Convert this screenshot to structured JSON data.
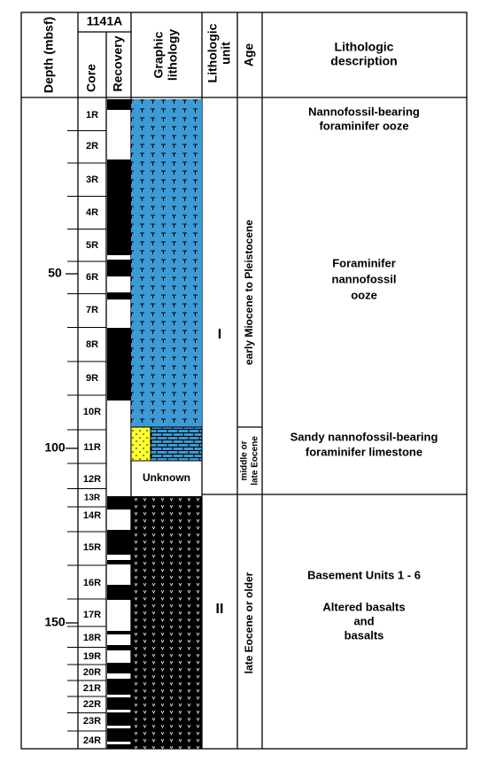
{
  "header": {
    "hole": "1141A",
    "depth": "Depth (mbsf)",
    "core": "Core",
    "recovery": "Recovery",
    "graphic": [
      "Graphic",
      "lithology"
    ],
    "unit": [
      "Lithologic",
      "unit"
    ],
    "age": "Age",
    "description": [
      "Lithologic",
      "description"
    ]
  },
  "depth_ticks": [
    50,
    100,
    150
  ],
  "cores": [
    "1R",
    "2R",
    "3R",
    "4R",
    "5R",
    "6R",
    "7R",
    "8R",
    "9R",
    "10R",
    "11R",
    "12R",
    "13R",
    "14R",
    "15R",
    "16R",
    "17R",
    "18R",
    "19R",
    "20R",
    "21R",
    "22R",
    "23R",
    "24R"
  ],
  "graphic_unknown": "Unknown",
  "units": [
    "I",
    "II"
  ],
  "ages": [
    [
      "early Miocene to Pleistocene"
    ],
    [
      "middle or",
      "late Eocene"
    ],
    [
      "late Eocene or older"
    ]
  ],
  "descriptions": [
    [
      "Nannofossil-bearing",
      "foraminifer ooze"
    ],
    [
      "Foraminifer",
      "nannofossil",
      "ooze"
    ],
    [
      "Sandy nannofossil-bearing",
      "foraminifer limestone"
    ],
    [
      "Basement Units 1 - 6"
    ],
    [
      "Altered basalts",
      "and",
      "basalts"
    ]
  ]
}
